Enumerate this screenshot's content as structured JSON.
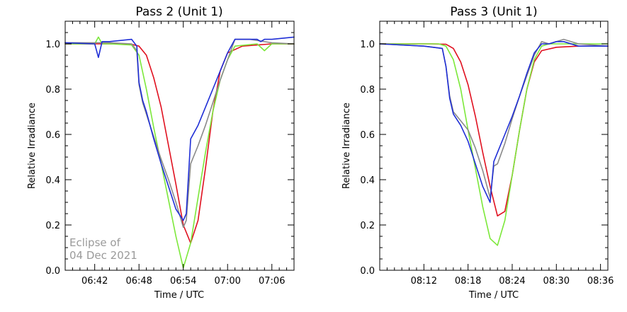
{
  "chart_data": [
    {
      "type": "line",
      "title": "Pass 2 (Unit 1)",
      "xlabel": "Time / UTC",
      "ylabel": "Relative Irradiance",
      "x_unit": "time HH:MM",
      "xlim": [
        "06:38",
        "07:09"
      ],
      "ylim": [
        0.0,
        1.1
      ],
      "xticks": [
        "06:42",
        "06:48",
        "06:54",
        "07:00",
        "07:06"
      ],
      "yticks": [
        "0.0",
        "0.2",
        "0.4",
        "0.6",
        "0.8",
        "1.0"
      ],
      "annotation": [
        "Eclipse of",
        "04 Dec 2021"
      ],
      "grid": false,
      "series": [
        {
          "color": "#e0101f",
          "x": [
            "06:38",
            "06:44",
            "06:47",
            "06:48",
            "06:49",
            "06:50",
            "06:51",
            "06:52",
            "06:53",
            "06:54",
            "06:55",
            "06:56",
            "06:57",
            "06:58",
            "06:59",
            "07:00",
            "07:02",
            "07:06",
            "07:09"
          ],
          "y": [
            1.0,
            1.0,
            0.998,
            0.99,
            0.95,
            0.85,
            0.72,
            0.55,
            0.38,
            0.2,
            0.12,
            0.22,
            0.45,
            0.7,
            0.88,
            0.96,
            0.99,
            1.0,
            1.0
          ]
        },
        {
          "color": "#7ce83a",
          "x": [
            "06:38",
            "06:42",
            "06:42.5",
            "06:43",
            "06:44",
            "06:47",
            "06:48",
            "06:49",
            "06:50",
            "06:51",
            "06:52",
            "06:53",
            "06:54",
            "06:55",
            "06:56",
            "06:57",
            "06:58",
            "06:59",
            "07:00",
            "07:01",
            "07:04",
            "07:05",
            "07:06",
            "07:09"
          ],
          "y": [
            1.0,
            1.0,
            1.03,
            1.0,
            1.0,
            0.995,
            0.95,
            0.8,
            0.63,
            0.47,
            0.31,
            0.15,
            0.01,
            0.12,
            0.32,
            0.52,
            0.7,
            0.84,
            0.93,
            0.99,
            1.0,
            0.97,
            1.0,
            1.0
          ]
        },
        {
          "color": "#8a8a8a",
          "x": [
            "06:38",
            "06:42",
            "06:44",
            "06:47",
            "06:47.7",
            "06:48",
            "06:48.5",
            "06:49",
            "06:50",
            "06:51",
            "06:52",
            "06:53",
            "06:54",
            "06:54.4",
            "06:55",
            "06:56",
            "06:57",
            "06:58",
            "06:59",
            "07:00",
            "07:01",
            "07:03",
            "07:06",
            "07:09"
          ],
          "y": [
            1.005,
            1.005,
            1.005,
            1.0,
            0.97,
            0.82,
            0.74,
            0.69,
            0.59,
            0.49,
            0.4,
            0.3,
            0.19,
            0.22,
            0.47,
            0.55,
            0.64,
            0.74,
            0.84,
            0.93,
            1.02,
            1.02,
            1.005,
            1.0
          ]
        },
        {
          "color": "#1f2ed6",
          "x": [
            "06:38",
            "06:42",
            "06:42.5",
            "06:43",
            "06:44",
            "06:47",
            "06:47.7",
            "06:48",
            "06:48.5",
            "06:49",
            "06:50",
            "06:51",
            "06:52",
            "06:53",
            "06:54",
            "06:54.4",
            "06:55",
            "06:56",
            "06:57",
            "06:58",
            "06:59",
            "07:00",
            "07:01",
            "07:04",
            "07:04.5",
            "07:05",
            "07:06",
            "07:09"
          ],
          "y": [
            1.005,
            1.0,
            0.94,
            1.01,
            1.01,
            1.02,
            0.99,
            0.83,
            0.75,
            0.7,
            0.58,
            0.47,
            0.37,
            0.27,
            0.22,
            0.25,
            0.58,
            0.64,
            0.72,
            0.8,
            0.88,
            0.96,
            1.02,
            1.02,
            1.01,
            1.02,
            1.02,
            1.03
          ]
        }
      ]
    },
    {
      "type": "line",
      "title": "Pass 3 (Unit 1)",
      "xlabel": "Time / UTC",
      "ylabel": "Relative Irradiance",
      "x_unit": "time HH:MM",
      "xlim": [
        "08:06",
        "08:37"
      ],
      "ylim": [
        0.0,
        1.1
      ],
      "xticks": [
        "08:12",
        "08:18",
        "08:24",
        "08:30",
        "08:36"
      ],
      "yticks": [
        "0.0",
        "0.2",
        "0.4",
        "0.6",
        "0.8",
        "1.0"
      ],
      "grid": false,
      "series": [
        {
          "color": "#e0101f",
          "x": [
            "08:06",
            "08:13",
            "08:15",
            "08:16",
            "08:17",
            "08:18",
            "08:19",
            "08:20",
            "08:21",
            "08:22",
            "08:23",
            "08:24",
            "08:25",
            "08:26",
            "08:27",
            "08:28",
            "08:30",
            "08:33",
            "08:37"
          ],
          "y": [
            1.0,
            1.0,
            0.998,
            0.98,
            0.92,
            0.82,
            0.68,
            0.52,
            0.37,
            0.24,
            0.26,
            0.42,
            0.62,
            0.8,
            0.92,
            0.97,
            0.985,
            0.99,
            0.99
          ]
        },
        {
          "color": "#7ce83a",
          "x": [
            "08:06",
            "08:13",
            "08:14",
            "08:15",
            "08:16",
            "08:17",
            "08:18",
            "08:19",
            "08:20",
            "08:21",
            "08:22",
            "08:23",
            "08:24",
            "08:25",
            "08:26",
            "08:27",
            "08:28",
            "08:29",
            "08:33",
            "08:37"
          ],
          "y": [
            1.0,
            1.0,
            1.0,
            0.99,
            0.93,
            0.8,
            0.62,
            0.45,
            0.28,
            0.14,
            0.11,
            0.22,
            0.42,
            0.62,
            0.8,
            0.93,
            0.99,
            1.0,
            1.0,
            1.0
          ]
        },
        {
          "color": "#8a8a8a",
          "x": [
            "08:06",
            "08:12",
            "08:14.5",
            "08:15",
            "08:15.5",
            "08:16",
            "08:17",
            "08:18",
            "08:19",
            "08:20",
            "08:21",
            "08:21.5",
            "08:22",
            "08:23",
            "08:24",
            "08:25",
            "08:26",
            "08:27",
            "08:28",
            "08:29",
            "08:30",
            "08:31",
            "08:33",
            "08:37"
          ],
          "y": [
            1.0,
            0.99,
            0.98,
            0.9,
            0.77,
            0.7,
            0.66,
            0.62,
            0.54,
            0.44,
            0.32,
            0.46,
            0.47,
            0.56,
            0.67,
            0.77,
            0.86,
            0.95,
            1.01,
            1.0,
            1.01,
            1.02,
            1.0,
            0.99
          ]
        },
        {
          "color": "#1f2ed6",
          "x": [
            "08:06",
            "08:12",
            "08:14.5",
            "08:15",
            "08:15.5",
            "08:16",
            "08:17",
            "08:18",
            "08:19",
            "08:20",
            "08:21",
            "08:21.5",
            "08:22",
            "08:23",
            "08:24",
            "08:25",
            "08:26",
            "08:27",
            "08:28",
            "08:29",
            "08:30",
            "08:31",
            "08:33",
            "08:37"
          ],
          "y": [
            1.0,
            0.99,
            0.98,
            0.9,
            0.76,
            0.69,
            0.64,
            0.57,
            0.47,
            0.37,
            0.3,
            0.48,
            0.52,
            0.6,
            0.68,
            0.77,
            0.87,
            0.96,
            1.0,
            1.0,
            1.01,
            1.01,
            0.99,
            0.99
          ]
        }
      ]
    }
  ]
}
